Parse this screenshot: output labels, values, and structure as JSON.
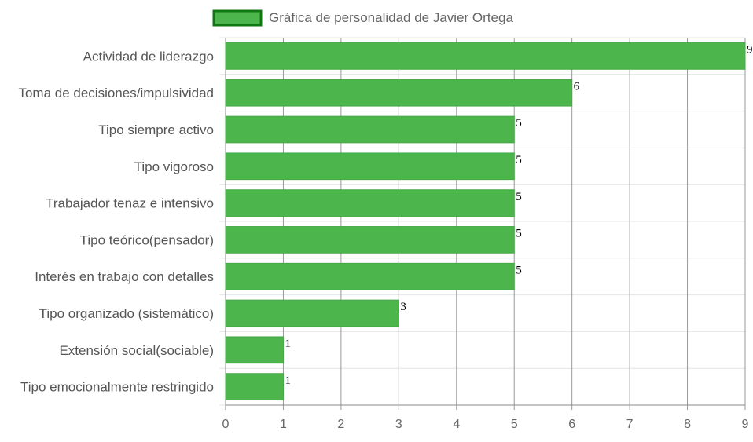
{
  "chart_data": {
    "type": "bar",
    "orientation": "horizontal",
    "legend": {
      "label": "Gráfica de personalidad de Javier Ortega",
      "position": "top"
    },
    "categories": [
      "Actividad de liderazgo",
      "Toma de decisiones/impulsividad",
      "Tipo siempre activo",
      "Tipo vigoroso",
      "Trabajador tenaz e intensivo",
      "Tipo teórico(pensador)",
      "Interés en trabajo con detalles",
      "Tipo organizado (sistemático)",
      "Extensión social(sociable)",
      "Tipo emocionalmente restringido"
    ],
    "series": [
      {
        "name": "Gráfica de personalidad de Javier Ortega",
        "values": [
          9,
          6,
          5,
          5,
          5,
          5,
          5,
          3,
          1,
          1
        ]
      }
    ],
    "xlim": [
      0,
      9
    ],
    "xticks": [
      0,
      1,
      2,
      3,
      4,
      5,
      6,
      7,
      8,
      9
    ],
    "grid": true,
    "data_labels": true,
    "colors": {
      "bar_fill": "#4cb64c",
      "bar_border": "#45a845",
      "legend_border": "#117711"
    }
  }
}
